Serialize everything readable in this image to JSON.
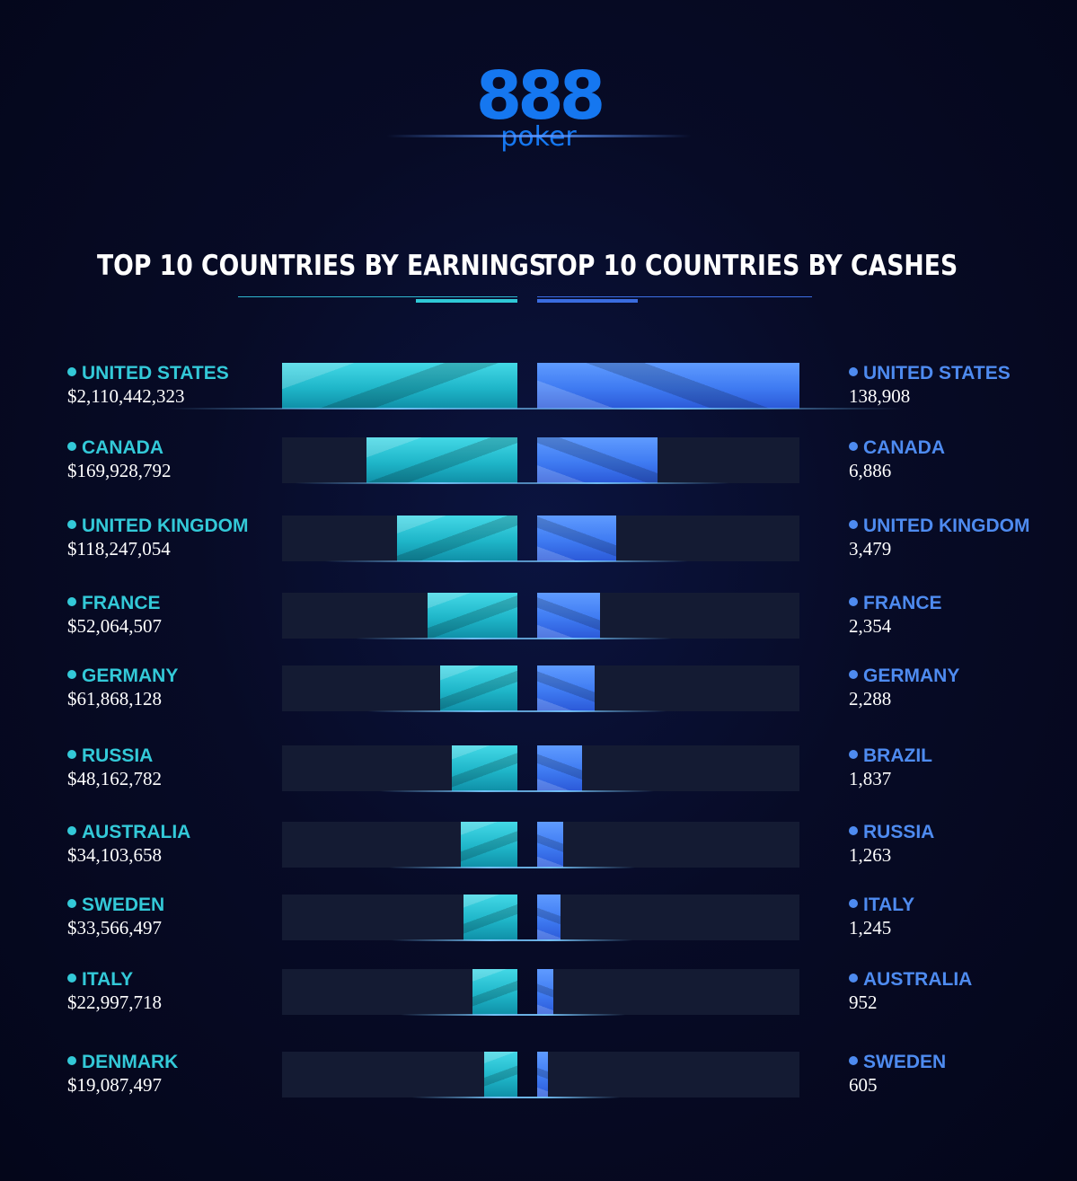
{
  "logo": {
    "mark": "888",
    "word": "poker",
    "brand_color": "#1577f0"
  },
  "chart_data": [
    {
      "type": "bar",
      "title": "TOP 10 COUNTRIES BY EARNINGS",
      "orientation": "horizontal",
      "color": "#33c9d8",
      "categories": [
        "UNITED STATES",
        "CANADA",
        "UNITED KINGDOM",
        "FRANCE",
        "GERMANY",
        "RUSSIA",
        "AUSTRALIA",
        "SWEDEN",
        "ITALY",
        "DENMARK"
      ],
      "values": [
        2110442323,
        169928792,
        118247054,
        52064507,
        61868128,
        48162782,
        34103658,
        33566497,
        22997718,
        19087497
      ],
      "value_labels": [
        "$2,110,442,323",
        "$169,928,792",
        "$118,247,054",
        "$52,064,507",
        "$61,868,128",
        "$48,162,782",
        "$34,103,658",
        "$33,566,497",
        "$22,997,718",
        "$19,087,497"
      ],
      "bar_fraction": [
        1.0,
        0.64,
        0.51,
        0.38,
        0.33,
        0.28,
        0.24,
        0.23,
        0.19,
        0.14
      ]
    },
    {
      "type": "bar",
      "title": "TOP 10 COUNTRIES BY CASHES",
      "orientation": "horizontal",
      "color": "#4e8bf0",
      "categories": [
        "UNITED STATES",
        "CANADA",
        "UNITED KINGDOM",
        "FRANCE",
        "GERMANY",
        "BRAZIL",
        "RUSSIA",
        "ITALY",
        "AUSTRALIA",
        "SWEDEN"
      ],
      "values": [
        138908,
        6886,
        3479,
        2354,
        2288,
        1837,
        1263,
        1245,
        952,
        605
      ],
      "value_labels": [
        "138,908",
        "6,886",
        "3,479",
        "2,354",
        "2,288",
        "1,837",
        "1,263",
        "1,245",
        "952",
        "605"
      ],
      "bar_fraction": [
        1.0,
        0.46,
        0.3,
        0.24,
        0.22,
        0.17,
        0.1,
        0.09,
        0.06,
        0.04
      ]
    }
  ]
}
